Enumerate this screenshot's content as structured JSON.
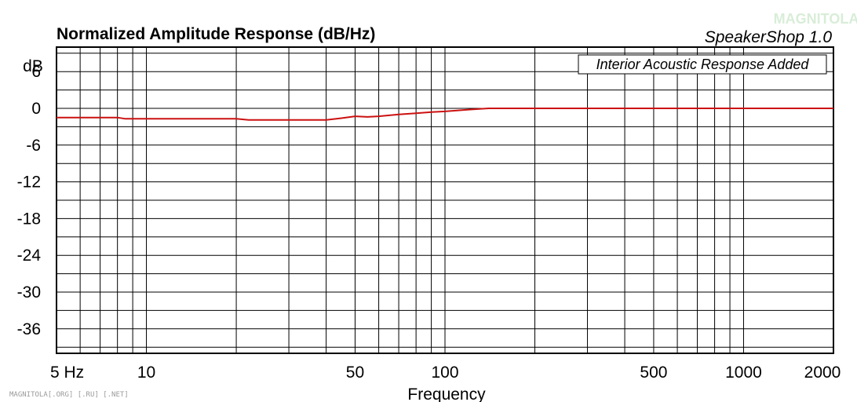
{
  "chart_data": {
    "type": "line",
    "title": "Normalized Amplitude Response (dB/Hz)",
    "brand": "SpeakerShop 1.0",
    "annotation": "Interior Acoustic Response Added",
    "xlabel": "Frequency",
    "ylabel": "dB",
    "x_scale": "log",
    "xlim": [
      5,
      2000
    ],
    "ylim": [
      -40,
      10
    ],
    "x_ticks": [
      {
        "value": 5,
        "label": "5  Hz"
      },
      {
        "value": 10,
        "label": "10"
      },
      {
        "value": 50,
        "label": "50"
      },
      {
        "value": 100,
        "label": "100"
      },
      {
        "value": 500,
        "label": "500"
      },
      {
        "value": 1000,
        "label": "1000"
      },
      {
        "value": 2000,
        "label": "2000"
      }
    ],
    "y_ticks": [
      {
        "value": 6,
        "label": "6"
      },
      {
        "value": 0,
        "label": "0"
      },
      {
        "value": -6,
        "label": "-6"
      },
      {
        "value": -12,
        "label": "-12"
      },
      {
        "value": -18,
        "label": "-18"
      },
      {
        "value": -24,
        "label": "-24"
      },
      {
        "value": -30,
        "label": "-30"
      },
      {
        "value": -36,
        "label": "-36"
      }
    ],
    "grid": true,
    "series": [
      {
        "color": "#cc1111",
        "x": [
          5,
          8,
          8.5,
          10,
          15,
          20,
          22,
          30,
          40,
          45,
          50,
          55,
          60,
          70,
          80,
          90,
          100,
          120,
          140,
          200,
          500,
          1000,
          2000
        ],
        "y": [
          -1.5,
          -1.5,
          -1.7,
          -1.7,
          -1.7,
          -1.7,
          -1.9,
          -1.9,
          -1.9,
          -1.6,
          -1.3,
          -1.4,
          -1.3,
          -1.0,
          -0.8,
          -0.6,
          -0.5,
          -0.2,
          0,
          0,
          0,
          0,
          0
        ]
      }
    ]
  },
  "watermark": {
    "footer": "MAGNITOLA[.ORG] [.RU] [.NET]",
    "logo": "MAGNITOLA"
  }
}
